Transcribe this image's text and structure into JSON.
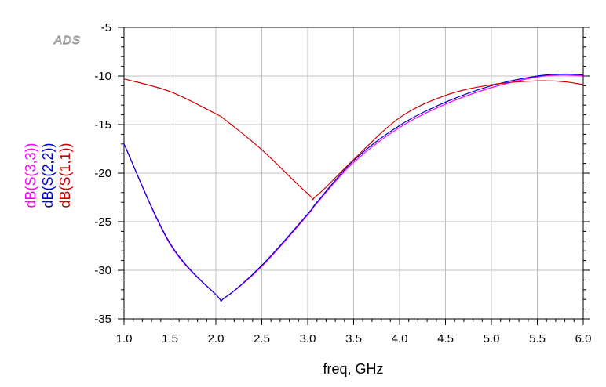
{
  "watermark": "ADS",
  "chart_data": {
    "type": "line",
    "xlabel": "freq, GHz",
    "xlim": [
      1.0,
      6.0
    ],
    "ylim": [
      -35,
      -5
    ],
    "x_ticks": [
      "1.0",
      "1.5",
      "2.0",
      "2.5",
      "3.0",
      "3.5",
      "4.0",
      "4.5",
      "5.0",
      "5.5",
      "6.0"
    ],
    "y_ticks": [
      "-5",
      "-10",
      "-15",
      "-20",
      "-25",
      "-30",
      "-35"
    ],
    "grid": true,
    "x": [
      1.0,
      1.5,
      2.0,
      2.1,
      2.5,
      3.0,
      3.1,
      3.5,
      4.0,
      4.5,
      5.0,
      5.5,
      5.8,
      6.0
    ],
    "series": [
      {
        "name": "dB(S(3,3))",
        "color": "#ff00ff",
        "values": [
          -17.0,
          -27.3,
          -32.5,
          -32.8,
          -29.6,
          -24.3,
          -23.1,
          -18.9,
          -15.3,
          -12.9,
          -11.2,
          -10.1,
          -9.9,
          -10.0
        ]
      },
      {
        "name": "dB(S(2,2))",
        "color": "#0000cc",
        "values": [
          -17.0,
          -27.2,
          -32.5,
          -32.8,
          -29.5,
          -24.2,
          -23.0,
          -18.7,
          -15.1,
          -12.7,
          -11.0,
          -10.0,
          -9.8,
          -9.9
        ]
      },
      {
        "name": "dB(S(1,1))",
        "color": "#cc0000",
        "values": [
          -10.3,
          -11.6,
          -13.9,
          -14.5,
          -17.6,
          -22.1,
          -22.3,
          -18.6,
          -14.3,
          -12.0,
          -10.9,
          -10.5,
          -10.6,
          -10.9
        ]
      }
    ]
  }
}
